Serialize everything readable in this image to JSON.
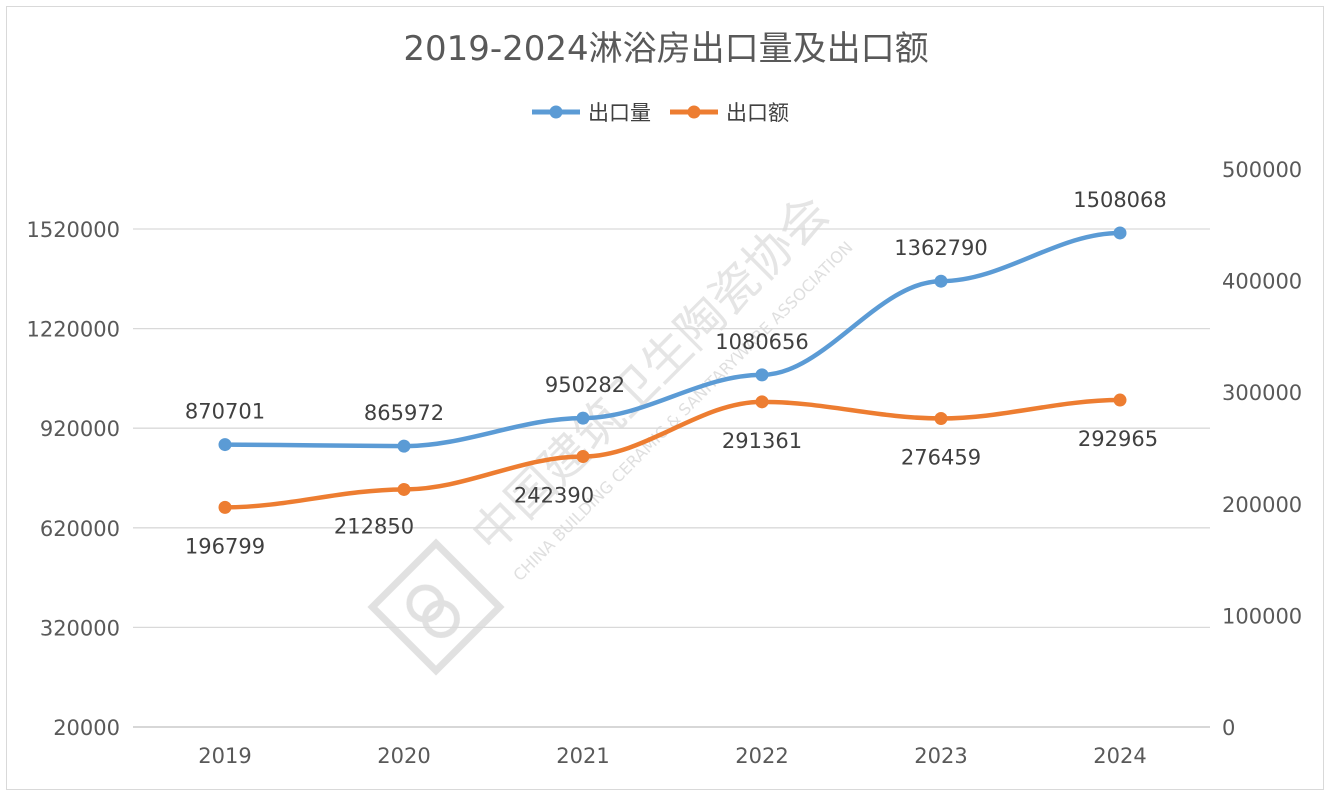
{
  "chart_data": {
    "type": "line",
    "title": "2019-2024淋浴房出口量及出口额",
    "categories": [
      "2019",
      "2020",
      "2021",
      "2022",
      "2023",
      "2024"
    ],
    "series": [
      {
        "name": "出口量",
        "axis": "left",
        "color": "#5b9bd5",
        "values": [
          870701,
          865972,
          950282,
          1080656,
          1362790,
          1508068
        ],
        "labels": [
          "870701",
          "865972",
          "950282",
          "1080656",
          "1362790",
          "1508068"
        ]
      },
      {
        "name": "出口额",
        "axis": "right",
        "color": "#ed7d31",
        "values": [
          196799,
          212850,
          242390,
          291361,
          276459,
          292965
        ],
        "labels": [
          "196799",
          "212850",
          "242390",
          "291361",
          "276459",
          "292965"
        ]
      }
    ],
    "y_left": {
      "ylim": [
        20000,
        1520000
      ],
      "ticks": [
        "20000",
        "320000",
        "620000",
        "920000",
        "1220000",
        "1520000"
      ]
    },
    "y_right": {
      "ylim": [
        0,
        500000
      ],
      "ticks": [
        "0",
        "100000",
        "200000",
        "300000",
        "400000",
        "500000"
      ]
    },
    "grid": true,
    "legend": "top-center"
  },
  "watermark": {
    "text_cn": "中国建筑卫生陶瓷协会",
    "text_en": "CHINA BUILDING CERAMIC & SANITARYWARE ASSOCIATION"
  }
}
